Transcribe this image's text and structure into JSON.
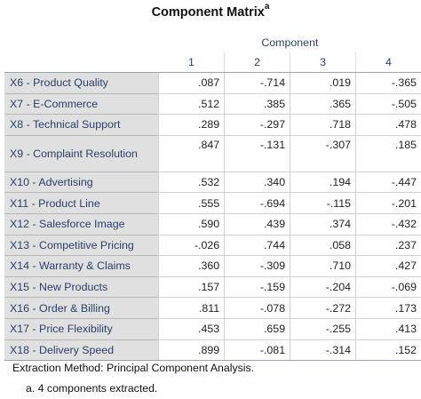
{
  "title": "Component Matrix",
  "title_sup": "a",
  "header": {
    "group_label": "Component",
    "columns": [
      "1",
      "2",
      "3",
      "4"
    ]
  },
  "rows": [
    {
      "label": "X6 - Product Quality",
      "values": [
        ".087",
        "-.714",
        ".019",
        "-.365"
      ]
    },
    {
      "label": "X7 - E-Commerce",
      "values": [
        ".512",
        ".385",
        ".365",
        "-.505"
      ]
    },
    {
      "label": "X8 - Technical Support",
      "values": [
        ".289",
        "-.297",
        ".718",
        ".478"
      ]
    },
    {
      "label": "X9 - Complaint Resolution",
      "values": [
        ".847",
        "-.131",
        "-.307",
        ".185"
      ]
    },
    {
      "label": "X10 - Advertising",
      "values": [
        ".532",
        ".340",
        ".194",
        "-.447"
      ]
    },
    {
      "label": "X11 - Product Line",
      "values": [
        ".555",
        "-.694",
        "-.115",
        "-.201"
      ]
    },
    {
      "label": "X12 - Salesforce Image",
      "values": [
        ".590",
        ".439",
        ".374",
        "-.432"
      ]
    },
    {
      "label": "X13 - Competitive Pricing",
      "values": [
        "-.026",
        ".744",
        ".058",
        ".237"
      ]
    },
    {
      "label": "X14 - Warranty & Claims",
      "values": [
        ".360",
        "-.309",
        ".710",
        ".427"
      ]
    },
    {
      "label": "X15 - New Products",
      "values": [
        ".157",
        "-.159",
        "-.204",
        "-.069"
      ]
    },
    {
      "label": "X16 - Order & Billing",
      "values": [
        ".811",
        "-.078",
        "-.272",
        ".173"
      ]
    },
    {
      "label": "X17 - Price Flexibility",
      "values": [
        ".453",
        ".659",
        "-.255",
        ".413"
      ]
    },
    {
      "label": "X18 - Delivery Speed",
      "values": [
        ".899",
        "-.081",
        "-.314",
        ".152"
      ]
    }
  ],
  "footer": {
    "method": "Extraction Method: Principal Component Analysis.",
    "note": "a. 4 components extracted."
  }
}
